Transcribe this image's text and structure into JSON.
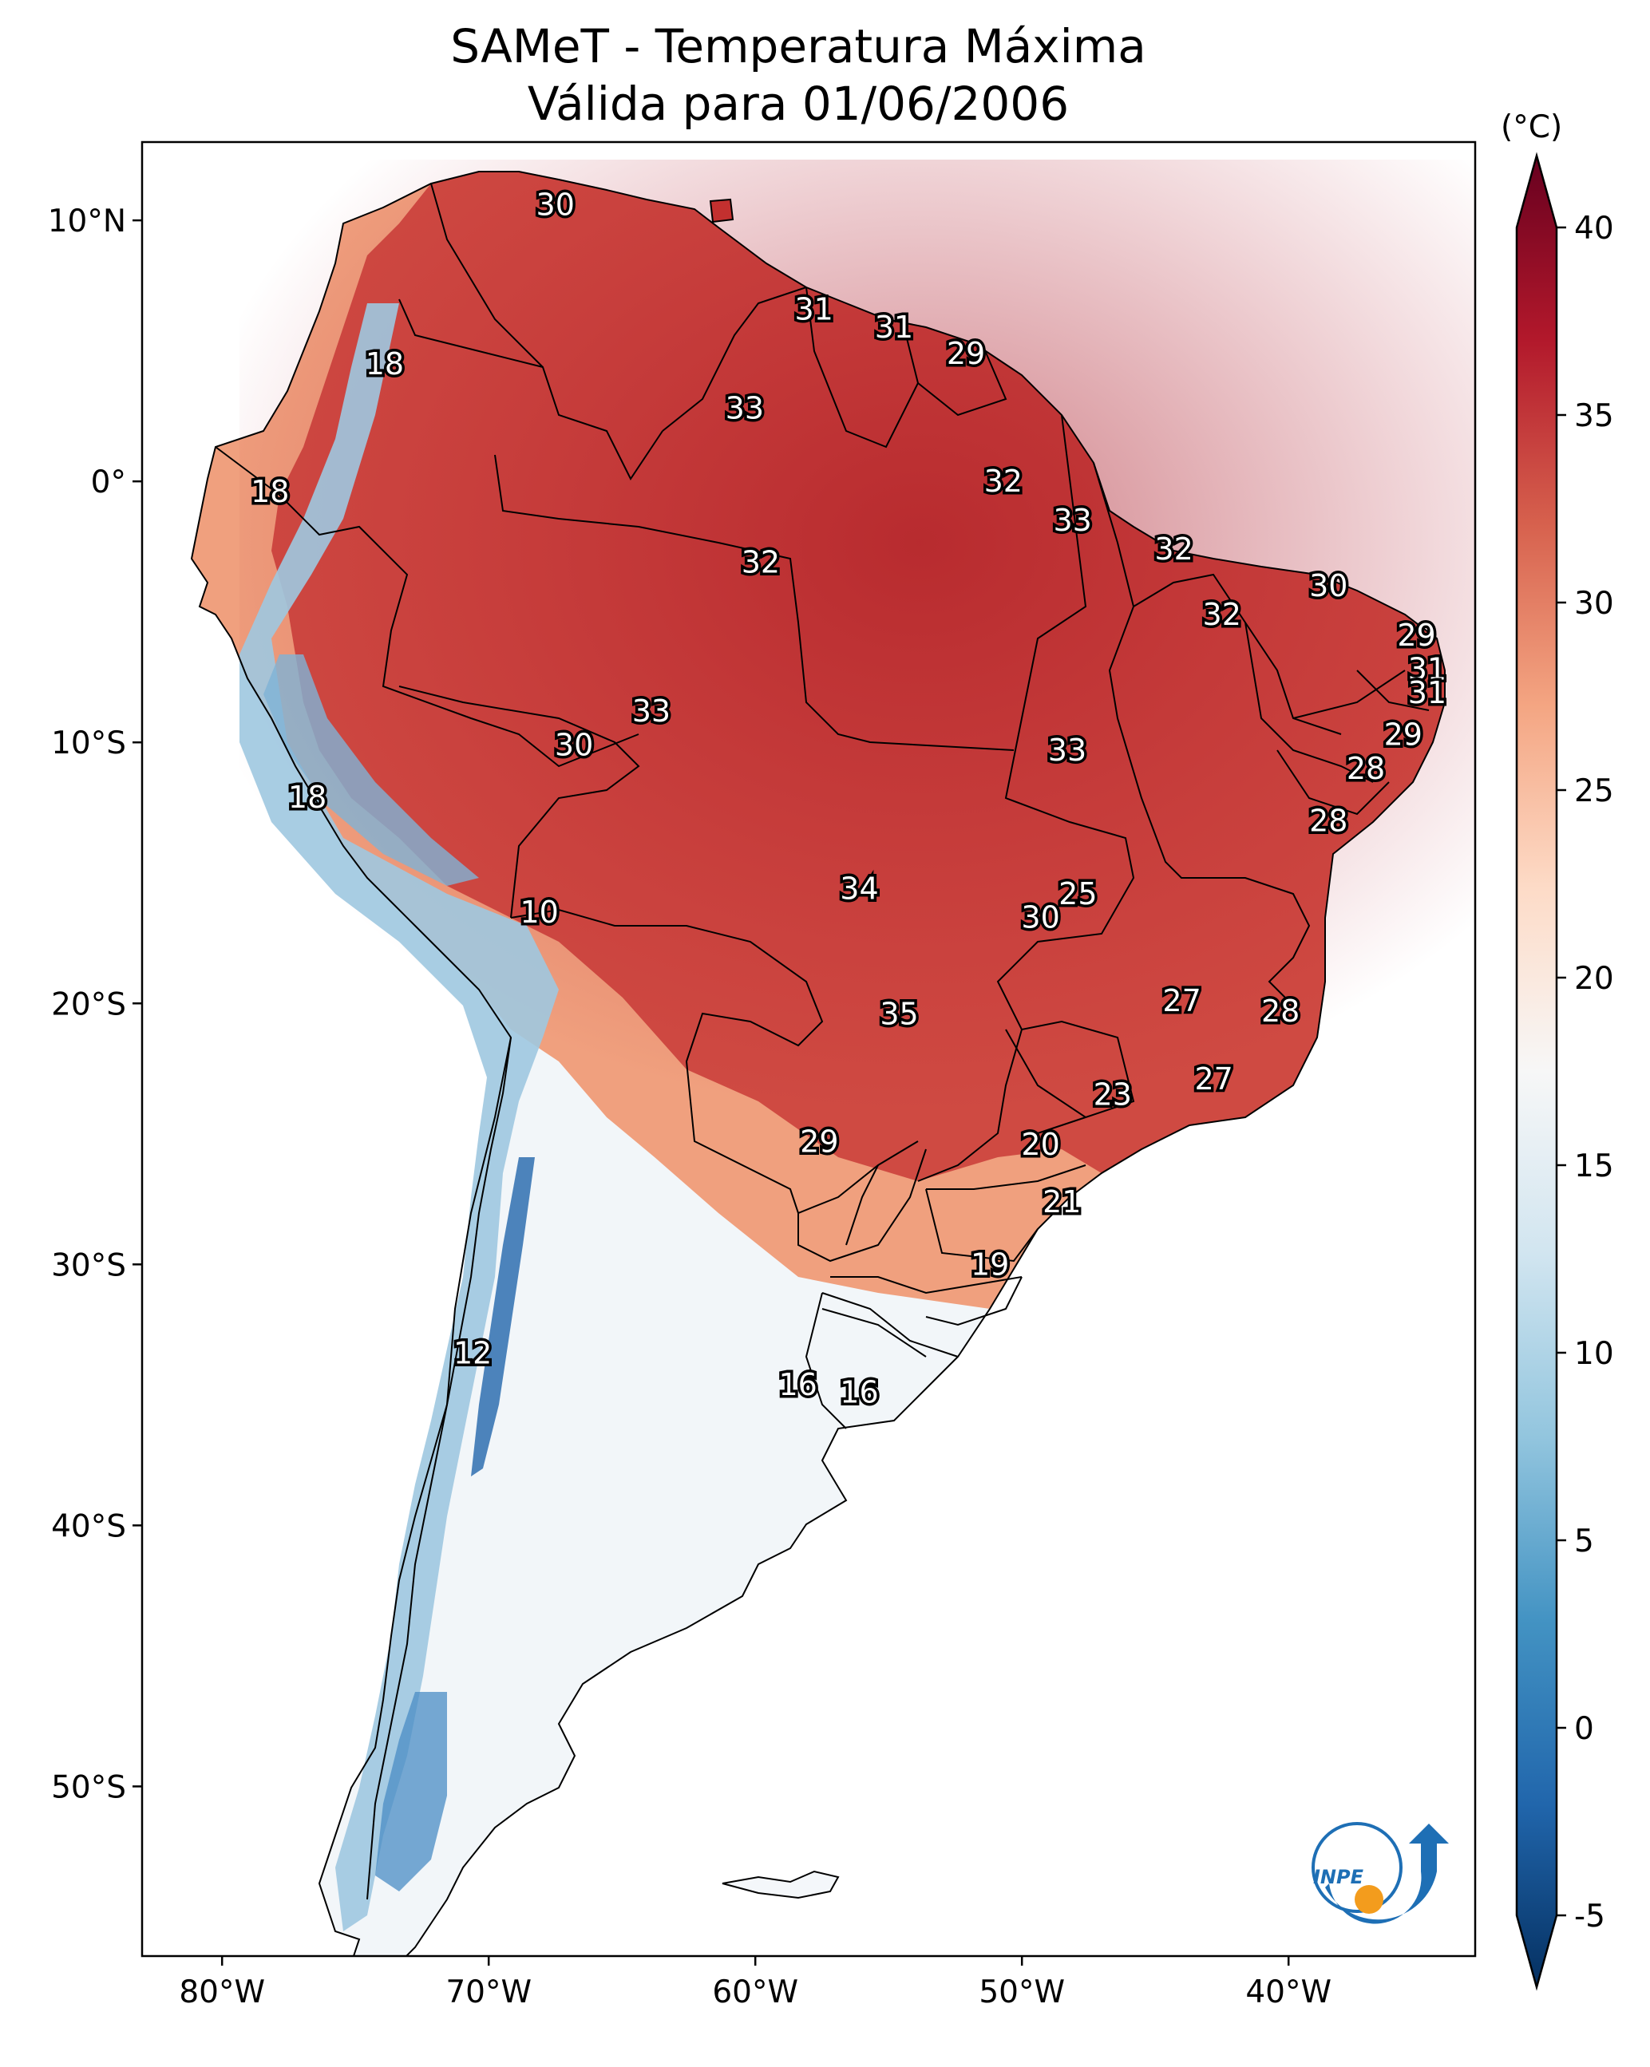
{
  "title": {
    "line1": "SAMeT - Temperatura Máxima",
    "line2": "Válida para 01/06/2006"
  },
  "map": {
    "lon_ticks": [
      "80°W",
      "70°W",
      "60°W",
      "50°W",
      "40°W"
    ],
    "lat_ticks": [
      "10°N",
      "0°",
      "10°S",
      "20°S",
      "30°S",
      "40°S",
      "50°S"
    ],
    "lon_values": [
      -80,
      -70,
      -60,
      -50,
      -40
    ],
    "lat_values": [
      10,
      0,
      -10,
      -20,
      -30,
      -40,
      -50
    ],
    "extent": {
      "lon_min": -83,
      "lon_max": -33,
      "lat_min": -56.5,
      "lat_max": 13
    }
  },
  "colorbar": {
    "unit": "(°C)",
    "ticks": [
      "40",
      "35",
      "30",
      "25",
      "20",
      "15",
      "10",
      "5",
      "0",
      "-5"
    ],
    "tick_values": [
      40,
      35,
      30,
      25,
      20,
      15,
      10,
      5,
      0,
      -5
    ],
    "min": -5,
    "max": 40,
    "stops": [
      "#053061",
      "#2166ac",
      "#4393c3",
      "#92c5de",
      "#d1e5f0",
      "#f7f7f7",
      "#fddbc7",
      "#f4a582",
      "#d6604d",
      "#b2182b",
      "#67001f"
    ]
  },
  "station_labels": [
    {
      "text": "30",
      "lon": -67.5,
      "lat": 10.6
    },
    {
      "text": "31",
      "lon": -57.8,
      "lat": 6.6
    },
    {
      "text": "31",
      "lon": -54.8,
      "lat": 5.9
    },
    {
      "text": "29",
      "lon": -52.1,
      "lat": 4.9
    },
    {
      "text": "18",
      "lon": -73.9,
      "lat": 4.5
    },
    {
      "text": "33",
      "lon": -60.4,
      "lat": 2.8
    },
    {
      "text": "18",
      "lon": -78.2,
      "lat": -0.4
    },
    {
      "text": "32",
      "lon": -50.7,
      "lat": 0.0
    },
    {
      "text": "33",
      "lon": -48.1,
      "lat": -1.5
    },
    {
      "text": "32",
      "lon": -59.8,
      "lat": -3.1
    },
    {
      "text": "32",
      "lon": -44.3,
      "lat": -2.6
    },
    {
      "text": "30",
      "lon": -38.5,
      "lat": -4.0
    },
    {
      "text": "32",
      "lon": -42.5,
      "lat": -5.1
    },
    {
      "text": "29",
      "lon": -35.2,
      "lat": -5.9
    },
    {
      "text": "31",
      "lon": -34.8,
      "lat": -7.2
    },
    {
      "text": "31",
      "lon": -34.8,
      "lat": -8.1
    },
    {
      "text": "33",
      "lon": -63.9,
      "lat": -8.8
    },
    {
      "text": "30",
      "lon": -66.8,
      "lat": -10.1
    },
    {
      "text": "29",
      "lon": -35.7,
      "lat": -9.7
    },
    {
      "text": "33",
      "lon": -48.3,
      "lat": -10.3
    },
    {
      "text": "28",
      "lon": -37.1,
      "lat": -11.0
    },
    {
      "text": "18",
      "lon": -76.8,
      "lat": -12.1
    },
    {
      "text": "28",
      "lon": -38.5,
      "lat": -13.0
    },
    {
      "text": "34",
      "lon": -56.1,
      "lat": -15.6
    },
    {
      "text": "25",
      "lon": -47.9,
      "lat": -15.8
    },
    {
      "text": "30",
      "lon": -49.3,
      "lat": -16.7
    },
    {
      "text": "10",
      "lon": -68.1,
      "lat": -16.5
    },
    {
      "text": "27",
      "lon": -44.0,
      "lat": -19.9
    },
    {
      "text": "35",
      "lon": -54.6,
      "lat": -20.4
    },
    {
      "text": "28",
      "lon": -40.3,
      "lat": -20.3
    },
    {
      "text": "27",
      "lon": -42.8,
      "lat": -22.9
    },
    {
      "text": "23",
      "lon": -46.6,
      "lat": -23.5
    },
    {
      "text": "29",
      "lon": -57.6,
      "lat": -25.3
    },
    {
      "text": "20",
      "lon": -49.3,
      "lat": -25.4
    },
    {
      "text": "21",
      "lon": -48.5,
      "lat": -27.6
    },
    {
      "text": "19",
      "lon": -51.2,
      "lat": -30.0
    },
    {
      "text": "12",
      "lon": -70.6,
      "lat": -33.4
    },
    {
      "text": "16",
      "lon": -58.4,
      "lat": -34.6
    },
    {
      "text": "16",
      "lon": -56.1,
      "lat": -34.9
    }
  ],
  "logo": {
    "text": "INPE"
  }
}
